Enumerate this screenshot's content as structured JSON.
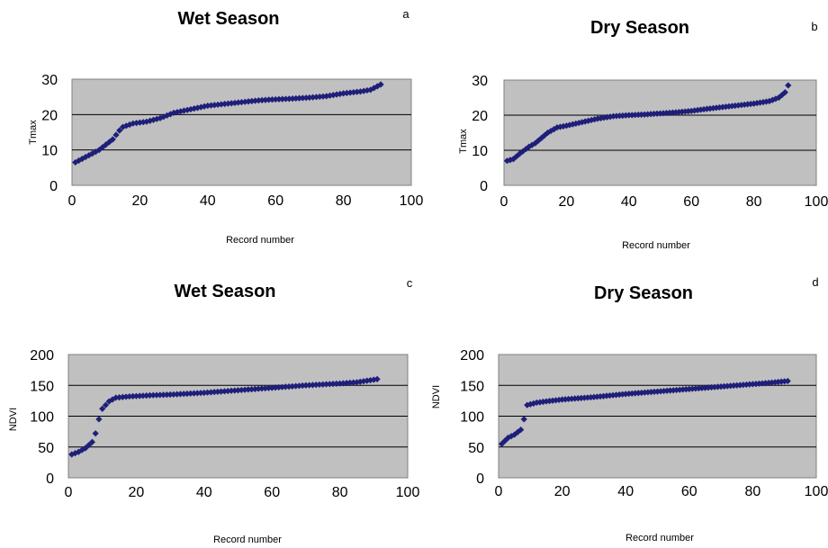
{
  "chart_data": [
    {
      "type": "scatter",
      "panel_label": "a",
      "title": "Wet Season",
      "xlabel": "Record number",
      "ylabel": "Tmax",
      "xlim": [
        0,
        100
      ],
      "ylim": [
        0,
        30
      ],
      "xticks": [
        0,
        20,
        40,
        60,
        80,
        100
      ],
      "yticks": [
        0,
        10,
        20,
        30
      ],
      "grid": "horizontal",
      "marker": "diamond",
      "color": "#1f1f7a",
      "x_range": [
        1,
        91
      ],
      "y_profile": [
        [
          1,
          6.5
        ],
        [
          3,
          7.5
        ],
        [
          6,
          9
        ],
        [
          8,
          10
        ],
        [
          10,
          11.5
        ],
        [
          12,
          13
        ],
        [
          14,
          15.5
        ],
        [
          15,
          16.5
        ],
        [
          18,
          17.5
        ],
        [
          22,
          18
        ],
        [
          26,
          19
        ],
        [
          30,
          20.5
        ],
        [
          35,
          21.5
        ],
        [
          40,
          22.5
        ],
        [
          45,
          23
        ],
        [
          50,
          23.5
        ],
        [
          55,
          24
        ],
        [
          60,
          24.3
        ],
        [
          65,
          24.5
        ],
        [
          70,
          24.8
        ],
        [
          75,
          25.2
        ],
        [
          80,
          26
        ],
        [
          85,
          26.5
        ],
        [
          88,
          27
        ],
        [
          91,
          28.5
        ]
      ]
    },
    {
      "type": "scatter",
      "panel_label": "b",
      "title": "Dry Season",
      "xlabel": "Record number",
      "ylabel": "Tmax",
      "xlim": [
        0,
        100
      ],
      "ylim": [
        0,
        30
      ],
      "xticks": [
        0,
        20,
        40,
        60,
        80,
        100
      ],
      "yticks": [
        0,
        10,
        20,
        30
      ],
      "grid": "horizontal",
      "marker": "diamond",
      "color": "#1f1f7a",
      "x_range": [
        1,
        91
      ],
      "y_profile": [
        [
          1,
          7
        ],
        [
          3,
          7.5
        ],
        [
          5,
          9
        ],
        [
          8,
          11
        ],
        [
          10,
          12
        ],
        [
          12,
          13.5
        ],
        [
          14,
          15
        ],
        [
          17,
          16.5
        ],
        [
          20,
          17
        ],
        [
          25,
          18
        ],
        [
          30,
          19
        ],
        [
          35,
          19.7
        ],
        [
          40,
          20
        ],
        [
          45,
          20.2
        ],
        [
          50,
          20.5
        ],
        [
          55,
          20.8
        ],
        [
          60,
          21.2
        ],
        [
          65,
          21.8
        ],
        [
          70,
          22.3
        ],
        [
          75,
          22.8
        ],
        [
          80,
          23.3
        ],
        [
          85,
          24
        ],
        [
          88,
          25
        ],
        [
          90,
          26.5
        ],
        [
          91,
          28.5
        ]
      ]
    },
    {
      "type": "scatter",
      "panel_label": "c",
      "title": "Wet Season",
      "xlabel": "Record number",
      "ylabel": "NDVI",
      "xlim": [
        0,
        100
      ],
      "ylim": [
        0,
        200
      ],
      "xticks": [
        0,
        20,
        40,
        60,
        80,
        100
      ],
      "yticks": [
        0,
        50,
        100,
        150,
        200
      ],
      "grid": "horizontal",
      "marker": "diamond",
      "color": "#1f1f7a",
      "x_range": [
        1,
        91
      ],
      "y_profile": [
        [
          1,
          38
        ],
        [
          3,
          42
        ],
        [
          5,
          48
        ],
        [
          7,
          58
        ],
        [
          8,
          72
        ],
        [
          9,
          95
        ],
        [
          10,
          112
        ],
        [
          12,
          124
        ],
        [
          14,
          130
        ],
        [
          18,
          132
        ],
        [
          25,
          134
        ],
        [
          30,
          135
        ],
        [
          40,
          138
        ],
        [
          50,
          142
        ],
        [
          60,
          146
        ],
        [
          70,
          150
        ],
        [
          80,
          153
        ],
        [
          85,
          155
        ],
        [
          91,
          160
        ]
      ]
    },
    {
      "type": "scatter",
      "panel_label": "d",
      "title": "Dry Season",
      "xlabel": "Record number",
      "ylabel": "NDVI",
      "xlim": [
        0,
        100
      ],
      "ylim": [
        0,
        200
      ],
      "xticks": [
        0,
        20,
        40,
        60,
        80,
        100
      ],
      "yticks": [
        0,
        50,
        100,
        150,
        200
      ],
      "grid": "horizontal",
      "marker": "diamond",
      "color": "#1f1f7a",
      "x_range": [
        1,
        91
      ],
      "y_profile": [
        [
          1,
          55
        ],
        [
          3,
          65
        ],
        [
          5,
          70
        ],
        [
          7,
          78
        ],
        [
          8,
          95
        ],
        [
          9,
          118
        ],
        [
          12,
          122
        ],
        [
          15,
          124
        ],
        [
          20,
          127
        ],
        [
          30,
          131
        ],
        [
          40,
          136
        ],
        [
          50,
          140
        ],
        [
          60,
          144
        ],
        [
          70,
          148
        ],
        [
          80,
          152
        ],
        [
          85,
          154
        ],
        [
          91,
          157
        ]
      ]
    }
  ]
}
